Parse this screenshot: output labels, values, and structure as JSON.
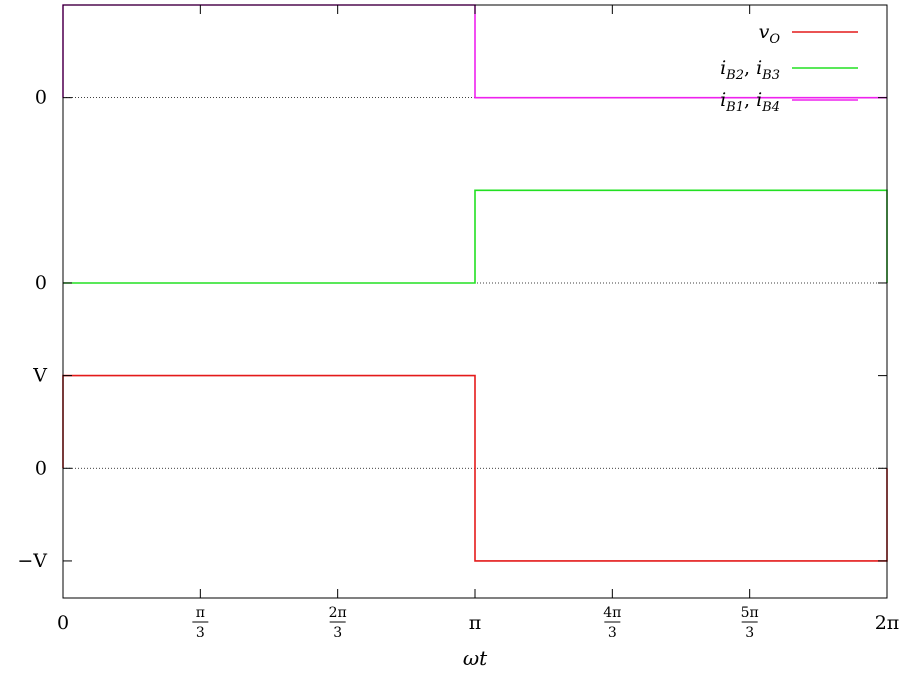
{
  "chart_data": {
    "type": "line",
    "title": "",
    "xlabel": "ωt",
    "ylabel": "",
    "xlim": [
      0,
      6.283185
    ],
    "grid": false,
    "legend_position": "top-right",
    "x_ticks": [
      {
        "value": 0,
        "label": "0"
      },
      {
        "value": 1.047198,
        "num": "π",
        "den": "3"
      },
      {
        "value": 2.094395,
        "num": "2π",
        "den": "3"
      },
      {
        "value": 3.141593,
        "label": "π"
      },
      {
        "value": 4.18879,
        "num": "4π",
        "den": "3"
      },
      {
        "value": 5.235988,
        "num": "5π",
        "den": "3"
      },
      {
        "value": 6.283185,
        "label": "2π"
      }
    ],
    "y_ticks": [
      {
        "level": 3,
        "label": "0"
      },
      {
        "level": 1,
        "label": "0"
      },
      {
        "level": 0,
        "label": "V"
      },
      {
        "level": -1,
        "label": "0"
      },
      {
        "level": -2,
        "label": "−V"
      }
    ],
    "zero_levels": [
      3,
      1,
      -1
    ],
    "ylim": [
      -2.4,
      4.0
    ],
    "series": [
      {
        "name": "v_O",
        "legend_main": "v",
        "legend_sub": "O",
        "color": "#e41a1a",
        "x": [
          0,
          0,
          3.141593,
          3.141593,
          6.283185,
          6.283185
        ],
        "y": [
          -1,
          0,
          0,
          -2,
          -2,
          -1
        ]
      },
      {
        "name": "i_B2, i_B3",
        "legend_parts": [
          [
            "i",
            "B2"
          ],
          [
            "i",
            "B3"
          ]
        ],
        "color": "#22e022",
        "x": [
          0,
          3.141593,
          3.141593,
          6.283185,
          6.283185
        ],
        "y": [
          1,
          1,
          2,
          2,
          1
        ]
      },
      {
        "name": "i_B1, i_B4",
        "legend_parts": [
          [
            "i",
            "B1"
          ],
          [
            "i",
            "B4"
          ]
        ],
        "color": "#ee22ee",
        "x": [
          0,
          0,
          3.141593,
          3.141593,
          6.283185
        ],
        "y": [
          3,
          4,
          4,
          3,
          3
        ]
      }
    ]
  },
  "colors": {
    "frame": "#000000",
    "zero_line": "#000000"
  }
}
